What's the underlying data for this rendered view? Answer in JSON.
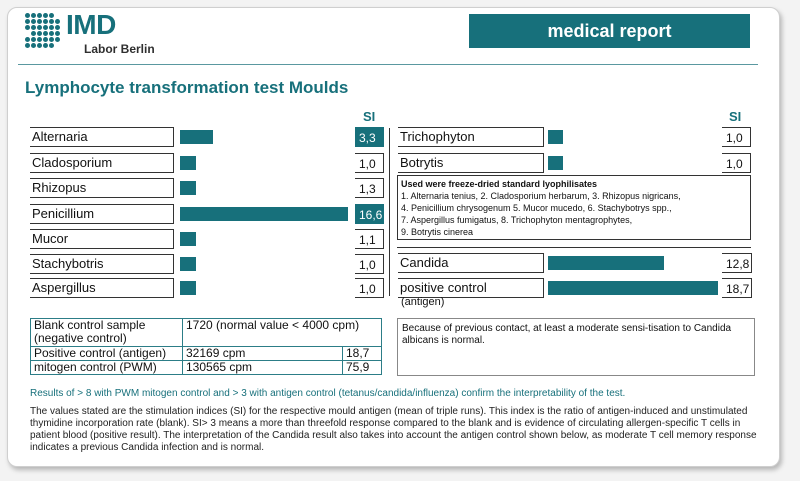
{
  "header": {
    "logo_text": "IMD",
    "logo_sub": "Labor Berlin",
    "badge": "medical report",
    "brand_color": "#17707b"
  },
  "title": "Lymphocyte transformation test Moulds",
  "si_label": "SI",
  "left_rows": [
    {
      "name": "Alternaria",
      "si": "3,3",
      "value": 3.3
    },
    {
      "name": "Cladosporium",
      "si": "1,0",
      "value": 1.0
    },
    {
      "name": "Rhizopus",
      "si": "1,3",
      "value": 1.3
    },
    {
      "name": "Penicillium",
      "si": "16,6",
      "value": 16.6
    },
    {
      "name": "Mucor",
      "si": "1,1",
      "value": 1.1
    },
    {
      "name": "Stachybotris",
      "si": "1,0",
      "value": 1.0
    },
    {
      "name": "Aspergillus",
      "si": "1,0",
      "value": 1.0
    }
  ],
  "right_rows": [
    {
      "name": "Trichophyton",
      "si": "1,0",
      "value": 1.0
    },
    {
      "name": "Botrytis",
      "si": "1,0",
      "value": 1.0
    }
  ],
  "lyophilisates": {
    "title": "Used were freeze-dried standard lyophilisates",
    "lines": [
      "1. Alternaria tenius, 2. Cladosporium herbarum, 3. Rhizopus nigricans,",
      "4. Penicillium chrysogenum 5. Mucor mucedo, 6. Stachybotrys spp.,",
      "7. Aspergillus fumigatus, 8. Trichophyton mentagrophytes,",
      "9. Botrytis cinerea"
    ]
  },
  "extra_rows": [
    {
      "name": "Candida",
      "si": "12,8",
      "value": 12.8
    },
    {
      "name": "positive control",
      "sub": "(antigen)",
      "si": "18,7",
      "value": 18.7
    }
  ],
  "controls": {
    "rows": [
      {
        "label": "Blank control sample (negative control)",
        "value": "1720  (normal value < 4000 cpm)",
        "si": ""
      },
      {
        "label": "Positive control (antigen)",
        "value": "32169     cpm",
        "si": "18,7"
      },
      {
        "label": "mitogen control (PWM)",
        "value": "130565    cpm",
        "si": "75,9"
      }
    ]
  },
  "note": "Because of previous contact, at least a moderate sensi-tisation to Candida albicans is normal.",
  "teal_note": "Results of > 8 with PWM mitogen control and > 3 with antigen control (tetanus/candida/influenza) confirm the interpretability of the test.",
  "body_text": "The values stated are the stimulation indices (SI) for the respective mould antigen (mean of triple runs). This index is the ratio of antigen-induced and unstimulated thymidine incorporation rate (blank). SI> 3 means a more than threefold response compared to the blank and is evidence of circulating allergen-specific T cells in patient blood (positive result). The interpretation of the Candida result also takes into account the antigen control shown below, as moderate T cell memory response indicates a previous Candida infection and is normal."
}
